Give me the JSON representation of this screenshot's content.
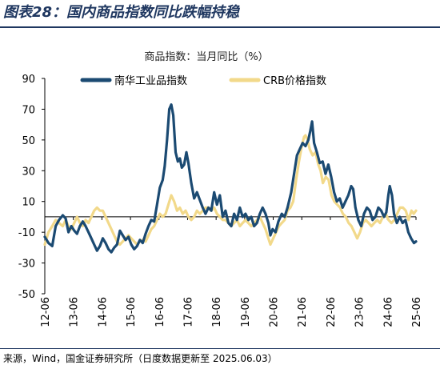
{
  "header": {
    "figure_title": "图表28：国内商品指数同比跌幅持稳"
  },
  "footer": {
    "source": "来源，Wind，国金证券研究所（日度数据更新至 2025.06.03）"
  },
  "colors": {
    "title_blue": "#1f3760",
    "series_1": "#1b4a72",
    "series_2": "#f2d98a",
    "axis": "#000000"
  },
  "chart_data": {
    "type": "line",
    "title": "商品指数：当月同比（%）",
    "xlabel": "",
    "ylabel": "",
    "ylim": [
      -50,
      90
    ],
    "yticks": [
      90,
      70,
      50,
      30,
      10,
      -10,
      -30,
      -50
    ],
    "xlim": [
      2012.42,
      2025.42
    ],
    "x_tick_labels": [
      "12-06",
      "13-06",
      "14-06",
      "15-06",
      "16-06",
      "17-06",
      "18-06",
      "19-06",
      "20-06",
      "21-06",
      "22-06",
      "23-06",
      "24-06",
      "25-06"
    ],
    "x_ticks": [
      2012.42,
      2013.42,
      2014.42,
      2015.42,
      2016.42,
      2017.42,
      2018.42,
      2019.42,
      2020.42,
      2021.42,
      2022.42,
      2023.42,
      2024.42,
      2025.42
    ],
    "legend_position": "top",
    "grid": false,
    "series": [
      {
        "name": "南华工业品指数",
        "color": "#1b4a72",
        "points": [
          [
            2012.42,
            -13
          ],
          [
            2012.55,
            -17
          ],
          [
            2012.68,
            -19
          ],
          [
            2012.8,
            -6
          ],
          [
            2012.92,
            -2
          ],
          [
            2013.05,
            1
          ],
          [
            2013.15,
            -1
          ],
          [
            2013.25,
            -10
          ],
          [
            2013.35,
            -6
          ],
          [
            2013.45,
            -9
          ],
          [
            2013.55,
            -11
          ],
          [
            2013.65,
            -6
          ],
          [
            2013.75,
            -3
          ],
          [
            2013.85,
            -6
          ],
          [
            2013.95,
            -10
          ],
          [
            2014.05,
            -14
          ],
          [
            2014.15,
            -18
          ],
          [
            2014.25,
            -22
          ],
          [
            2014.35,
            -19
          ],
          [
            2014.45,
            -14
          ],
          [
            2014.55,
            -17
          ],
          [
            2014.65,
            -21
          ],
          [
            2014.75,
            -23
          ],
          [
            2014.85,
            -20
          ],
          [
            2014.95,
            -18
          ],
          [
            2015.05,
            -9
          ],
          [
            2015.15,
            -12
          ],
          [
            2015.25,
            -15
          ],
          [
            2015.35,
            -13
          ],
          [
            2015.45,
            -18
          ],
          [
            2015.55,
            -21
          ],
          [
            2015.65,
            -19
          ],
          [
            2015.75,
            -15
          ],
          [
            2015.85,
            -17
          ],
          [
            2015.95,
            -11
          ],
          [
            2016.05,
            -6
          ],
          [
            2016.15,
            -2
          ],
          [
            2016.25,
            -3
          ],
          [
            2016.35,
            8
          ],
          [
            2016.45,
            19
          ],
          [
            2016.55,
            24
          ],
          [
            2016.62,
            33
          ],
          [
            2016.7,
            50
          ],
          [
            2016.78,
            70
          ],
          [
            2016.85,
            73
          ],
          [
            2016.92,
            66
          ],
          [
            2017.0,
            42
          ],
          [
            2017.08,
            36
          ],
          [
            2017.15,
            38
          ],
          [
            2017.22,
            32
          ],
          [
            2017.3,
            34
          ],
          [
            2017.38,
            42
          ],
          [
            2017.45,
            35
          ],
          [
            2017.55,
            22
          ],
          [
            2017.65,
            12
          ],
          [
            2017.75,
            16
          ],
          [
            2017.85,
            11
          ],
          [
            2017.95,
            6
          ],
          [
            2018.05,
            2
          ],
          [
            2018.15,
            6
          ],
          [
            2018.25,
            4
          ],
          [
            2018.35,
            16
          ],
          [
            2018.45,
            8
          ],
          [
            2018.55,
            14
          ],
          [
            2018.65,
            0
          ],
          [
            2018.75,
            4
          ],
          [
            2018.85,
            -4
          ],
          [
            2018.95,
            -6
          ],
          [
            2019.05,
            2
          ],
          [
            2019.15,
            -2
          ],
          [
            2019.25,
            6
          ],
          [
            2019.35,
            0
          ],
          [
            2019.45,
            2
          ],
          [
            2019.55,
            -2
          ],
          [
            2019.65,
            0
          ],
          [
            2019.75,
            -6
          ],
          [
            2019.85,
            -4
          ],
          [
            2019.95,
            2
          ],
          [
            2020.05,
            6
          ],
          [
            2020.15,
            2
          ],
          [
            2020.25,
            -4
          ],
          [
            2020.32,
            -12
          ],
          [
            2020.4,
            -8
          ],
          [
            2020.5,
            -10
          ],
          [
            2020.6,
            -3
          ],
          [
            2020.72,
            2
          ],
          [
            2020.82,
            0
          ],
          [
            2020.92,
            6
          ],
          [
            2021.05,
            16
          ],
          [
            2021.15,
            28
          ],
          [
            2021.25,
            40
          ],
          [
            2021.35,
            44
          ],
          [
            2021.45,
            48
          ],
          [
            2021.55,
            46
          ],
          [
            2021.65,
            50
          ],
          [
            2021.72,
            56
          ],
          [
            2021.78,
            62
          ],
          [
            2021.85,
            48
          ],
          [
            2021.95,
            42
          ],
          [
            2022.05,
            35
          ],
          [
            2022.15,
            36
          ],
          [
            2022.25,
            28
          ],
          [
            2022.35,
            34
          ],
          [
            2022.45,
            26
          ],
          [
            2022.55,
            16
          ],
          [
            2022.65,
            10
          ],
          [
            2022.75,
            12
          ],
          [
            2022.85,
            6
          ],
          [
            2022.95,
            10
          ],
          [
            2023.05,
            14
          ],
          [
            2023.15,
            20
          ],
          [
            2023.22,
            18
          ],
          [
            2023.3,
            6
          ],
          [
            2023.4,
            -2
          ],
          [
            2023.5,
            -6
          ],
          [
            2023.6,
            2
          ],
          [
            2023.7,
            6
          ],
          [
            2023.8,
            4
          ],
          [
            2023.9,
            -2
          ],
          [
            2024.0,
            0
          ],
          [
            2024.1,
            6
          ],
          [
            2024.2,
            4
          ],
          [
            2024.3,
            0
          ],
          [
            2024.38,
            3
          ],
          [
            2024.45,
            14
          ],
          [
            2024.5,
            20
          ],
          [
            2024.58,
            14
          ],
          [
            2024.65,
            2
          ],
          [
            2024.75,
            -4
          ],
          [
            2024.85,
            0
          ],
          [
            2024.95,
            -4
          ],
          [
            2025.05,
            -2
          ],
          [
            2025.15,
            -10
          ],
          [
            2025.25,
            -14
          ],
          [
            2025.35,
            -17
          ],
          [
            2025.42,
            -16
          ]
        ]
      },
      {
        "name": "CRB价格指数",
        "color": "#f2d98a",
        "points": [
          [
            2012.42,
            -18
          ],
          [
            2012.55,
            -10
          ],
          [
            2012.68,
            -6
          ],
          [
            2012.8,
            -2
          ],
          [
            2012.92,
            -4
          ],
          [
            2013.05,
            -6
          ],
          [
            2013.15,
            -2
          ],
          [
            2013.25,
            -6
          ],
          [
            2013.35,
            -8
          ],
          [
            2013.45,
            -4
          ],
          [
            2013.55,
            0
          ],
          [
            2013.65,
            -4
          ],
          [
            2013.75,
            -6
          ],
          [
            2013.85,
            -2
          ],
          [
            2013.95,
            -4
          ],
          [
            2014.05,
            0
          ],
          [
            2014.15,
            4
          ],
          [
            2014.25,
            6
          ],
          [
            2014.35,
            4
          ],
          [
            2014.45,
            4
          ],
          [
            2014.55,
            0
          ],
          [
            2014.65,
            -4
          ],
          [
            2014.75,
            -8
          ],
          [
            2014.85,
            -12
          ],
          [
            2014.95,
            -16
          ],
          [
            2015.05,
            -18
          ],
          [
            2015.15,
            -16
          ],
          [
            2015.25,
            -14
          ],
          [
            2015.35,
            -12
          ],
          [
            2015.45,
            -14
          ],
          [
            2015.55,
            -16
          ],
          [
            2015.65,
            -18
          ],
          [
            2015.75,
            -16
          ],
          [
            2015.85,
            -15
          ],
          [
            2015.95,
            -16
          ],
          [
            2016.05,
            -12
          ],
          [
            2016.15,
            -8
          ],
          [
            2016.25,
            -6
          ],
          [
            2016.35,
            -2
          ],
          [
            2016.45,
            2
          ],
          [
            2016.55,
            0
          ],
          [
            2016.65,
            2
          ],
          [
            2016.75,
            8
          ],
          [
            2016.85,
            14
          ],
          [
            2016.95,
            10
          ],
          [
            2017.05,
            4
          ],
          [
            2017.15,
            6
          ],
          [
            2017.25,
            2
          ],
          [
            2017.35,
            4
          ],
          [
            2017.45,
            0
          ],
          [
            2017.55,
            -2
          ],
          [
            2017.65,
            0
          ],
          [
            2017.75,
            4
          ],
          [
            2017.85,
            2
          ],
          [
            2017.95,
            4
          ],
          [
            2018.05,
            6
          ],
          [
            2018.15,
            6
          ],
          [
            2018.25,
            4
          ],
          [
            2018.35,
            6
          ],
          [
            2018.45,
            2
          ],
          [
            2018.55,
            0
          ],
          [
            2018.65,
            -2
          ],
          [
            2018.75,
            -2
          ],
          [
            2018.85,
            -4
          ],
          [
            2018.95,
            -6
          ],
          [
            2019.05,
            -4
          ],
          [
            2019.15,
            -2
          ],
          [
            2019.25,
            -6
          ],
          [
            2019.35,
            -4
          ],
          [
            2019.45,
            -2
          ],
          [
            2019.55,
            -4
          ],
          [
            2019.65,
            -6
          ],
          [
            2019.75,
            -4
          ],
          [
            2019.85,
            -2
          ],
          [
            2019.95,
            0
          ],
          [
            2020.05,
            -4
          ],
          [
            2020.15,
            -8
          ],
          [
            2020.25,
            -14
          ],
          [
            2020.32,
            -18
          ],
          [
            2020.42,
            -14
          ],
          [
            2020.52,
            -10
          ],
          [
            2020.62,
            -6
          ],
          [
            2020.72,
            -4
          ],
          [
            2020.82,
            -2
          ],
          [
            2020.92,
            4
          ],
          [
            2021.02,
            6
          ],
          [
            2021.12,
            10
          ],
          [
            2021.22,
            24
          ],
          [
            2021.32,
            36
          ],
          [
            2021.42,
            46
          ],
          [
            2021.5,
            52
          ],
          [
            2021.55,
            53
          ],
          [
            2021.62,
            50
          ],
          [
            2021.7,
            44
          ],
          [
            2021.8,
            40
          ],
          [
            2021.9,
            42
          ],
          [
            2022.0,
            34
          ],
          [
            2022.08,
            30
          ],
          [
            2022.16,
            22
          ],
          [
            2022.26,
            26
          ],
          [
            2022.36,
            24
          ],
          [
            2022.46,
            14
          ],
          [
            2022.56,
            10
          ],
          [
            2022.66,
            8
          ],
          [
            2022.76,
            6
          ],
          [
            2022.86,
            2
          ],
          [
            2022.96,
            0
          ],
          [
            2023.06,
            -4
          ],
          [
            2023.16,
            -6
          ],
          [
            2023.26,
            -10
          ],
          [
            2023.36,
            -14
          ],
          [
            2023.46,
            -10
          ],
          [
            2023.56,
            -4
          ],
          [
            2023.66,
            -2
          ],
          [
            2023.76,
            -4
          ],
          [
            2023.86,
            -6
          ],
          [
            2023.96,
            -4
          ],
          [
            2024.06,
            -2
          ],
          [
            2024.16,
            -4
          ],
          [
            2024.26,
            0
          ],
          [
            2024.36,
            2
          ],
          [
            2024.46,
            -2
          ],
          [
            2024.56,
            -4
          ],
          [
            2024.66,
            -2
          ],
          [
            2024.76,
            2
          ],
          [
            2024.86,
            6
          ],
          [
            2024.96,
            6
          ],
          [
            2025.06,
            4
          ],
          [
            2025.16,
            -2
          ],
          [
            2025.26,
            4
          ],
          [
            2025.34,
            2
          ],
          [
            2025.42,
            4
          ]
        ]
      }
    ]
  }
}
